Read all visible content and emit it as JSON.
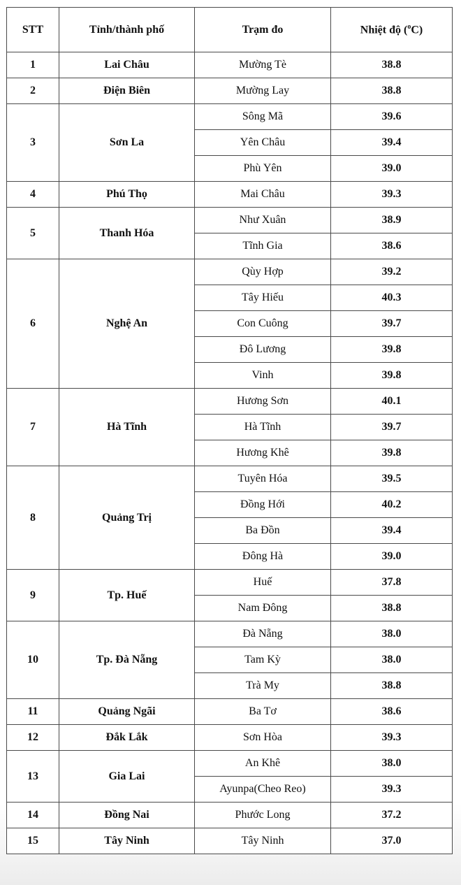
{
  "headers": {
    "stt": "STT",
    "province": "Tỉnh/thành phố",
    "station": "Trạm đo",
    "temp_prefix": "Nhiệt độ (",
    "temp_sup": "o",
    "temp_suffix": "C)"
  },
  "groups": [
    {
      "stt": "1",
      "province": "Lai Châu",
      "stations": [
        [
          "Mường Tè",
          "38.8"
        ]
      ]
    },
    {
      "stt": "2",
      "province": "Điện Biên",
      "stations": [
        [
          "Mường Lay",
          "38.8"
        ]
      ]
    },
    {
      "stt": "3",
      "province": "Sơn La",
      "stations": [
        [
          "Sông Mã",
          "39.6"
        ],
        [
          "Yên Châu",
          "39.4"
        ],
        [
          "Phù Yên",
          "39.0"
        ]
      ]
    },
    {
      "stt": "4",
      "province": "Phú Thọ",
      "stations": [
        [
          "Mai Châu",
          "39.3"
        ]
      ]
    },
    {
      "stt": "5",
      "province": "Thanh Hóa",
      "stations": [
        [
          "Như Xuân",
          "38.9"
        ],
        [
          "Tĩnh Gia",
          "38.6"
        ]
      ]
    },
    {
      "stt": "6",
      "province": "Nghệ An",
      "stations": [
        [
          "Qùy Hợp",
          "39.2"
        ],
        [
          "Tây Hiếu",
          "40.3"
        ],
        [
          "Con Cuông",
          "39.7"
        ],
        [
          "Đô Lương",
          "39.8"
        ],
        [
          "Vinh",
          "39.8"
        ]
      ]
    },
    {
      "stt": "7",
      "province": "Hà Tĩnh",
      "stations": [
        [
          "Hương Sơn",
          "40.1"
        ],
        [
          "Hà Tĩnh",
          "39.7"
        ],
        [
          "Hương Khê",
          "39.8"
        ]
      ]
    },
    {
      "stt": "8",
      "province": "Quảng Trị",
      "stations": [
        [
          "Tuyên Hóa",
          "39.5"
        ],
        [
          "Đồng Hới",
          "40.2"
        ],
        [
          "Ba Đồn",
          "39.4"
        ],
        [
          "Đông Hà",
          "39.0"
        ]
      ]
    },
    {
      "stt": "9",
      "province": "Tp. Huế",
      "stations": [
        [
          "Huế",
          "37.8"
        ],
        [
          "Nam Đông",
          "38.8"
        ]
      ]
    },
    {
      "stt": "10",
      "province": "Tp.  Đà Nẵng",
      "stations": [
        [
          "Đà Nẵng",
          "38.0"
        ],
        [
          "Tam Kỳ",
          "38.0"
        ],
        [
          "Trà My",
          "38.8"
        ]
      ]
    },
    {
      "stt": "11",
      "province": "Quảng Ngãi",
      "stations": [
        [
          "Ba Tơ",
          "38.6"
        ]
      ]
    },
    {
      "stt": "12",
      "province": "Đắk Lắk",
      "stations": [
        [
          "Sơn Hòa",
          "39.3"
        ]
      ]
    },
    {
      "stt": "13",
      "province": "Gia Lai",
      "stations": [
        [
          "An Khê",
          "38.0"
        ],
        [
          "Ayunpa(Cheo Reo)",
          "39.3"
        ]
      ]
    },
    {
      "stt": "14",
      "province": "Đồng Nai",
      "stations": [
        [
          "Phước Long",
          "37.2"
        ]
      ]
    },
    {
      "stt": "15",
      "province": "Tây Ninh",
      "stations": [
        [
          "Tây Ninh",
          "37.0"
        ]
      ]
    }
  ]
}
